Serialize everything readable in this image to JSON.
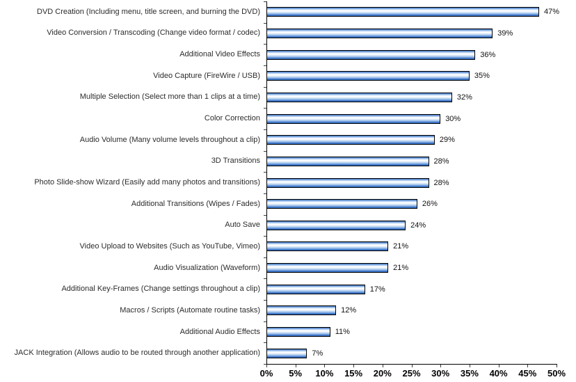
{
  "chart_data": {
    "type": "bar",
    "orientation": "horizontal",
    "title": "",
    "xlabel": "",
    "ylabel": "",
    "xlim": [
      0,
      50
    ],
    "grid": false,
    "legend_position": "none",
    "x_tick_labels": [
      "0%",
      "5%",
      "10%",
      "15%",
      "20%",
      "25%",
      "30%",
      "35%",
      "40%",
      "45%",
      "50%"
    ],
    "bars": [
      {
        "label": "DVD Creation (Including menu, title screen, and burning the DVD)",
        "value": 47,
        "value_label": "47%"
      },
      {
        "label": "Video Conversion / Transcoding (Change video format / codec)",
        "value": 39,
        "value_label": "39%"
      },
      {
        "label": "Additional Video Effects",
        "value": 36,
        "value_label": "36%"
      },
      {
        "label": "Video Capture (FireWire / USB)",
        "value": 35,
        "value_label": "35%"
      },
      {
        "label": "Multiple Selection (Select more than 1 clips at a time)",
        "value": 32,
        "value_label": "32%"
      },
      {
        "label": "Color Correction",
        "value": 30,
        "value_label": "30%"
      },
      {
        "label": "Audio Volume (Many volume levels throughout a clip)",
        "value": 29,
        "value_label": "29%"
      },
      {
        "label": "3D Transitions",
        "value": 28,
        "value_label": "28%"
      },
      {
        "label": "Photo Slide-show Wizard (Easily add many photos and transitions)",
        "value": 28,
        "value_label": "28%"
      },
      {
        "label": "Additional Transitions (Wipes / Fades)",
        "value": 26,
        "value_label": "26%"
      },
      {
        "label": "Auto Save",
        "value": 24,
        "value_label": "24%"
      },
      {
        "label": "Video Upload to Websites (Such as YouTube, Vimeo)",
        "value": 21,
        "value_label": "21%"
      },
      {
        "label": "Audio Visualization (Waveform)",
        "value": 21,
        "value_label": "21%"
      },
      {
        "label": "Additional Key-Frames (Change settings throughout a clip)",
        "value": 17,
        "value_label": "17%"
      },
      {
        "label": "Macros / Scripts (Automate routine tasks)",
        "value": 12,
        "value_label": "12%"
      },
      {
        "label": "Additional Audio Effects",
        "value": 11,
        "value_label": "11%"
      },
      {
        "label": "JACK Integration (Allows audio to be routed through another application)",
        "value": 7,
        "value_label": "7%"
      }
    ]
  },
  "colors": {
    "bar_border": "#000000",
    "bar_gradient": [
      "#3a6fc0",
      "#7aa4de",
      "#c3d9f2",
      "#ffffff",
      "#f7fafd",
      "#d7e6f6",
      "#aecbee",
      "#7fa9e1",
      "#3f77c9",
      "#2f63b8"
    ],
    "axis_line": "#000000",
    "tick": "#3a3a3a",
    "category_text": "#2b2b2b",
    "value_text": "#111111",
    "background": "#ffffff"
  }
}
